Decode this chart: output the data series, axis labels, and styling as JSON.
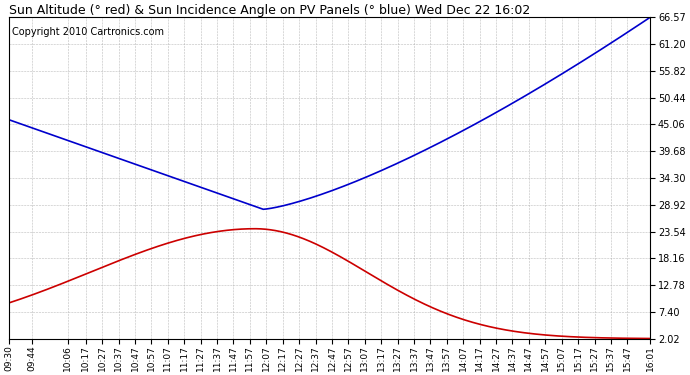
{
  "title": "Sun Altitude (° red) & Sun Incidence Angle on PV Panels (° blue) Wed Dec 22 16:02",
  "copyright": "Copyright 2010 Cartronics.com",
  "background_color": "#ffffff",
  "plot_bg_color": "#ffffff",
  "grid_color": "#aaaaaa",
  "yticks": [
    2.02,
    7.4,
    12.78,
    18.16,
    23.54,
    28.92,
    34.3,
    39.68,
    45.06,
    50.44,
    55.82,
    61.2,
    66.57
  ],
  "ymin": 2.02,
  "ymax": 66.57,
  "xtick_labels": [
    "09:30",
    "09:44",
    "10:06",
    "10:17",
    "10:27",
    "10:37",
    "10:47",
    "10:57",
    "11:07",
    "11:17",
    "11:27",
    "11:37",
    "11:47",
    "11:57",
    "12:07",
    "12:17",
    "12:27",
    "12:37",
    "12:47",
    "12:57",
    "13:07",
    "13:17",
    "13:27",
    "13:37",
    "13:47",
    "13:57",
    "14:07",
    "14:17",
    "14:27",
    "14:37",
    "14:47",
    "14:57",
    "15:07",
    "15:17",
    "15:27",
    "15:37",
    "15:47",
    "16:01"
  ],
  "red_color": "#cc0000",
  "blue_color": "#0000cc",
  "title_fontsize": 9,
  "copyright_fontsize": 7,
  "line_width": 1.2
}
